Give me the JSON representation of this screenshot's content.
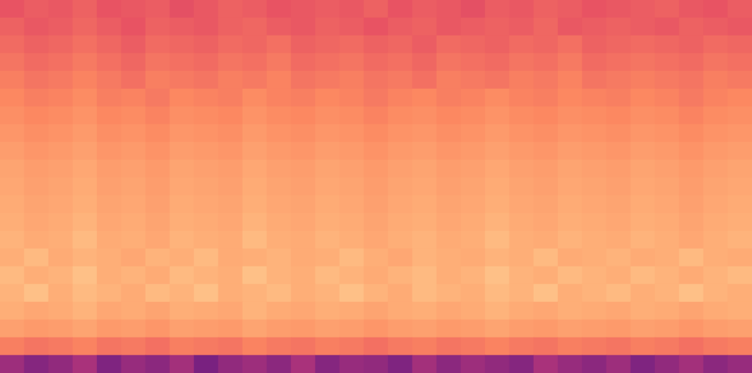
{
  "chart_data": {
    "type": "heatmap",
    "tick_labels": false,
    "grid": false,
    "color_range": [
      -80,
      0
    ],
    "cells": [
      [
        -34,
        -32,
        -33,
        -31,
        -34,
        -33,
        -32,
        -35,
        -33,
        -31,
        -32,
        -34,
        -33,
        -32,
        -33,
        -31,
        -34,
        -32,
        -33,
        -35,
        -32,
        -33,
        -31,
        -32,
        -34,
        -33,
        -32,
        -31,
        -33,
        -34,
        -32
      ],
      [
        -31,
        -33,
        -32,
        -30,
        -32,
        -34,
        -31,
        -32,
        -33,
        -31,
        -30,
        -32,
        -33,
        -31,
        -32,
        -34,
        -32,
        -31,
        -33,
        -32,
        -31,
        -32,
        -30,
        -33,
        -32,
        -31,
        -32,
        -33,
        -31,
        -32,
        -33
      ],
      [
        -29,
        -31,
        -30,
        -28,
        -30,
        -32,
        -29,
        -30,
        -31,
        -29,
        -30,
        -28,
        -31,
        -30,
        -29,
        -31,
        -30,
        -32,
        -29,
        -30,
        -31,
        -29,
        -30,
        -28,
        -31,
        -30,
        -29,
        -30,
        -31,
        -29,
        -30
      ],
      [
        -27,
        -29,
        -28,
        -26,
        -28,
        -30,
        -27,
        -28,
        -29,
        -27,
        -28,
        -26,
        -29,
        -28,
        -27,
        -29,
        -28,
        -30,
        -27,
        -28,
        -29,
        -27,
        -28,
        -26,
        -29,
        -28,
        -27,
        -28,
        -29,
        -27,
        -28
      ],
      [
        -25,
        -27,
        -26,
        -24,
        -26,
        -28,
        -25,
        -26,
        -27,
        -25,
        -26,
        -24,
        -27,
        -26,
        -25,
        -27,
        -26,
        -28,
        -25,
        -26,
        -27,
        -25,
        -26,
        -24,
        -27,
        -26,
        -25,
        -26,
        -27,
        -25,
        -26
      ],
      [
        -23,
        -25,
        -24,
        -22,
        -25,
        -24,
        -26,
        -23,
        -24,
        -25,
        -22,
        -24,
        -25,
        -23,
        -24,
        -26,
        -24,
        -23,
        -25,
        -24,
        -22,
        -24,
        -25,
        -23,
        -24,
        -25,
        -23,
        -24,
        -26,
        -24,
        -23
      ],
      [
        -21,
        -23,
        -22,
        -20,
        -23,
        -22,
        -24,
        -21,
        -22,
        -23,
        -20,
        -22,
        -23,
        -21,
        -22,
        -24,
        -22,
        -21,
        -23,
        -22,
        -20,
        -22,
        -23,
        -21,
        -22,
        -23,
        -21,
        -22,
        -24,
        -22,
        -21
      ],
      [
        -19,
        -21,
        -20,
        -18,
        -21,
        -20,
        -22,
        -19,
        -20,
        -21,
        -18,
        -20,
        -21,
        -19,
        -20,
        -22,
        -20,
        -19,
        -21,
        -20,
        -18,
        -20,
        -21,
        -19,
        -20,
        -21,
        -19,
        -20,
        -22,
        -20,
        -19
      ],
      [
        -17,
        -19,
        -18,
        -16,
        -19,
        -18,
        -20,
        -17,
        -18,
        -19,
        -16,
        -18,
        -19,
        -17,
        -18,
        -20,
        -18,
        -17,
        -19,
        -18,
        -16,
        -18,
        -19,
        -17,
        -18,
        -19,
        -17,
        -18,
        -20,
        -18,
        -17
      ],
      [
        -15,
        -17,
        -16,
        -14,
        -17,
        -16,
        -18,
        -15,
        -16,
        -17,
        -14,
        -16,
        -17,
        -15,
        -16,
        -18,
        -16,
        -15,
        -17,
        -16,
        -14,
        -16,
        -17,
        -15,
        -16,
        -17,
        -15,
        -16,
        -18,
        -16,
        -15
      ],
      [
        -14,
        -16,
        -15,
        -13,
        -16,
        -15,
        -17,
        -14,
        -15,
        -16,
        -13,
        -15,
        -16,
        -14,
        -15,
        -17,
        -15,
        -14,
        -16,
        -15,
        -13,
        -15,
        -16,
        -14,
        -15,
        -16,
        -14,
        -15,
        -17,
        -15,
        -14
      ],
      [
        -13,
        -15,
        -14,
        -12,
        -15,
        -14,
        -16,
        -13,
        -14,
        -15,
        -12,
        -14,
        -15,
        -13,
        -14,
        -16,
        -14,
        -13,
        -15,
        -14,
        -12,
        -14,
        -15,
        -13,
        -14,
        -15,
        -13,
        -14,
        -16,
        -14,
        -13
      ],
      [
        -12,
        -14,
        -13,
        -11,
        -14,
        -13,
        -15,
        -12,
        -13,
        -14,
        -11,
        -13,
        -14,
        -12,
        -13,
        -15,
        -13,
        -12,
        -14,
        -13,
        -11,
        -13,
        -14,
        -12,
        -13,
        -14,
        -12,
        -13,
        -15,
        -13,
        -12
      ],
      [
        -11,
        -13,
        -12,
        -10,
        -13,
        -12,
        -14,
        -11,
        -12,
        -13,
        -10,
        -12,
        -13,
        -11,
        -12,
        -14,
        -12,
        -11,
        -13,
        -12,
        -10,
        -12,
        -13,
        -11,
        -12,
        -13,
        -11,
        -12,
        -14,
        -12,
        -11
      ],
      [
        -12,
        -10,
        -13,
        -11,
        -12,
        -14,
        -11,
        -12,
        -10,
        -13,
        -12,
        -11,
        -13,
        -12,
        -10,
        -12,
        -14,
        -11,
        -12,
        -13,
        -11,
        -12,
        -10,
        -13,
        -12,
        -11,
        -13,
        -12,
        -10,
        -12,
        -13
      ],
      [
        -10,
        -12,
        -11,
        -9,
        -12,
        -11,
        -13,
        -10,
        -11,
        -12,
        -9,
        -11,
        -12,
        -10,
        -11,
        -13,
        -11,
        -10,
        -12,
        -11,
        -9,
        -11,
        -12,
        -10,
        -11,
        -12,
        -10,
        -11,
        -13,
        -11,
        -10
      ],
      [
        -11,
        -9,
        -12,
        -10,
        -11,
        -13,
        -10,
        -11,
        -9,
        -12,
        -11,
        -10,
        -12,
        -11,
        -9,
        -11,
        -13,
        -10,
        -11,
        -12,
        -10,
        -11,
        -9,
        -12,
        -11,
        -10,
        -12,
        -11,
        -9,
        -11,
        -12
      ],
      [
        -12,
        -14,
        -13,
        -11,
        -14,
        -13,
        -15,
        -12,
        -13,
        -14,
        -11,
        -13,
        -14,
        -12,
        -13,
        -15,
        -13,
        -12,
        -14,
        -13,
        -11,
        -13,
        -14,
        -12,
        -13,
        -14,
        -12,
        -13,
        -15,
        -13,
        -12
      ],
      [
        -16,
        -18,
        -17,
        -15,
        -18,
        -17,
        -19,
        -16,
        -17,
        -18,
        -15,
        -17,
        -18,
        -16,
        -17,
        -19,
        -17,
        -16,
        -18,
        -17,
        -15,
        -17,
        -18,
        -16,
        -17,
        -18,
        -16,
        -17,
        -19,
        -17,
        -16
      ],
      [
        -25,
        -27,
        -26,
        -24,
        -27,
        -26,
        -28,
        -25,
        -26,
        -27,
        -24,
        -26,
        -27,
        -25,
        -26,
        -28,
        -26,
        -25,
        -27,
        -26,
        -24,
        -26,
        -27,
        -25,
        -26,
        -27,
        -25,
        -26,
        -28,
        -26,
        -25
      ],
      [
        -50,
        -54,
        -52,
        -48,
        -55,
        -51,
        -53,
        -49,
        -56,
        -52,
        -50,
        -53,
        -48,
        -54,
        -51,
        -52,
        -55,
        -49,
        -53,
        -50,
        -52,
        -54,
        -48,
        -51,
        -53,
        -50,
        -55,
        -52,
        -49,
        -53,
        -51
      ]
    ]
  }
}
